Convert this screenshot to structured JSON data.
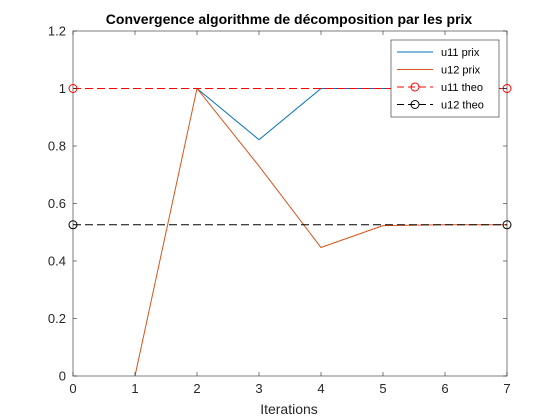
{
  "chart_data": {
    "type": "line",
    "title": "Convergence algorithme de décomposition par les prix",
    "xlabel": "Iterations",
    "ylabel": "",
    "xlim": [
      0,
      7
    ],
    "ylim": [
      0,
      1.2
    ],
    "xticks": [
      0,
      1,
      2,
      3,
      4,
      5,
      6,
      7
    ],
    "yticks": [
      0,
      0.2,
      0.4,
      0.6,
      0.8,
      1,
      1.2
    ],
    "grid": false,
    "legend_position": "top-right",
    "series": [
      {
        "name": "u11 prix",
        "color": "#0072BD",
        "style": "solid",
        "marker": "none",
        "x": [
          2,
          3,
          4,
          5,
          6,
          7
        ],
        "y": [
          1.0,
          0.822,
          1.0,
          1.0,
          1.0,
          1.0
        ]
      },
      {
        "name": "u12 prix",
        "color": "#D95319",
        "style": "solid",
        "marker": "none",
        "x": [
          1,
          2,
          3,
          4,
          5,
          6,
          7
        ],
        "y": [
          0.0,
          1.0,
          0.73,
          0.447,
          0.523,
          0.526,
          0.526
        ]
      },
      {
        "name": "u11 theo",
        "color": "#FF0000",
        "style": "dashed",
        "marker": "circle",
        "x": [
          0,
          7
        ],
        "y": [
          1.0,
          1.0
        ]
      },
      {
        "name": "u12 theo",
        "color": "#000000",
        "style": "dashed",
        "marker": "circle",
        "x": [
          0,
          7
        ],
        "y": [
          0.526,
          0.526
        ]
      }
    ]
  }
}
